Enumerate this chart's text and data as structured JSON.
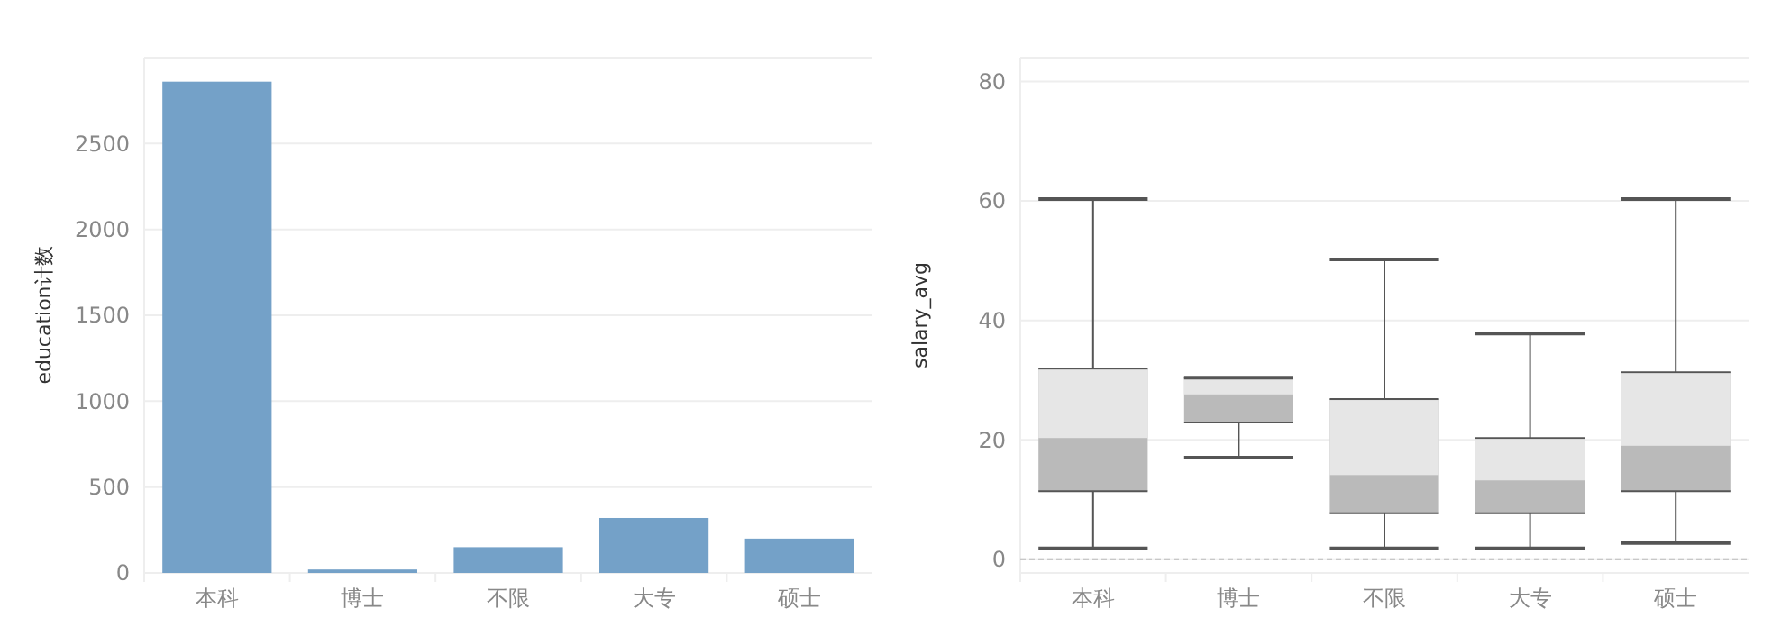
{
  "chart_data": [
    {
      "type": "bar",
      "ylabel": "education计数",
      "categories": [
        "本科",
        "博士",
        "不限",
        "大专",
        "硕士"
      ],
      "values": [
        2860,
        20,
        150,
        320,
        200
      ],
      "color": "#74a1c8",
      "ylim": [
        0,
        3000
      ],
      "yticks": [
        0,
        500,
        1000,
        1500,
        2000,
        2500
      ],
      "grid": "y"
    },
    {
      "type": "box",
      "ylabel": "salary_avg",
      "categories": [
        "本科",
        "博士",
        "不限",
        "大专",
        "硕士"
      ],
      "boxes": [
        {
          "low": 1.8,
          "q1": 11.4,
          "median": 20.3,
          "q3": 31.9,
          "high": 60.3
        },
        {
          "low": 17,
          "q1": 22.9,
          "median": 27.6,
          "q3": 30.4,
          "high": 30.4
        },
        {
          "low": 1.8,
          "q1": 7.7,
          "median": 14.1,
          "q3": 26.8,
          "high": 50.2
        },
        {
          "low": 1.8,
          "q1": 7.7,
          "median": 13.2,
          "q3": 20.3,
          "high": 37.8
        },
        {
          "low": 2.7,
          "q1": 11.4,
          "median": 19,
          "q3": 31.3,
          "high": 60.3
        }
      ],
      "color": "#bababa",
      "ylim": [
        -2.3,
        84
      ],
      "yticks": [
        0,
        20,
        40,
        60,
        80
      ],
      "grid": "y",
      "ref_lines": [
        {
          "axis": "y",
          "value": 0,
          "line_style": "dashed",
          "color": "#bbbbbb"
        }
      ]
    }
  ]
}
